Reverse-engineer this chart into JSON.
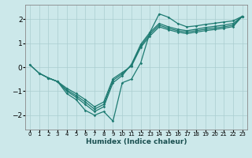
{
  "title": "",
  "xlabel": "Humidex (Indice chaleur)",
  "ylabel": "",
  "xlim": [
    -0.5,
    23.5
  ],
  "ylim": [
    -2.6,
    2.6
  ],
  "xticks": [
    0,
    1,
    2,
    3,
    4,
    5,
    6,
    7,
    8,
    9,
    10,
    11,
    12,
    13,
    14,
    15,
    16,
    17,
    18,
    19,
    20,
    21,
    22,
    23
  ],
  "yticks": [
    -2,
    -1,
    0,
    1,
    2
  ],
  "bg_color": "#cce8ea",
  "line_color": "#1e7b72",
  "grid_color": "#aacdd0",
  "figsize": [
    3.2,
    2.0
  ],
  "dpi": 100,
  "lines": [
    {
      "x": [
        0,
        1,
        2,
        3,
        4,
        5,
        6,
        7,
        8,
        9,
        10,
        11,
        12,
        13,
        14,
        15,
        16,
        17,
        18,
        19,
        20,
        21,
        22,
        23
      ],
      "y": [
        0.1,
        -0.25,
        -0.45,
        -0.6,
        -1.1,
        -1.35,
        -1.8,
        -2.0,
        -1.85,
        -2.25,
        -0.65,
        -0.5,
        0.18,
        1.45,
        2.22,
        2.08,
        1.82,
        1.68,
        1.72,
        1.78,
        1.83,
        1.88,
        1.93,
        2.12
      ]
    },
    {
      "x": [
        0,
        1,
        2,
        3,
        4,
        5,
        6,
        7,
        8,
        9,
        10,
        11,
        12,
        13,
        14,
        15,
        16,
        17,
        18,
        19,
        20,
        21,
        22,
        23
      ],
      "y": [
        0.1,
        -0.25,
        -0.45,
        -0.6,
        -1.0,
        -1.25,
        -1.55,
        -1.85,
        -1.65,
        -0.65,
        -0.35,
        0.12,
        0.95,
        1.45,
        1.82,
        1.68,
        1.58,
        1.52,
        1.58,
        1.65,
        1.7,
        1.75,
        1.82,
        2.12
      ]
    },
    {
      "x": [
        1,
        2,
        3,
        4,
        5,
        6,
        7,
        8,
        9,
        10,
        11,
        12,
        13,
        14,
        15,
        16,
        17,
        18,
        19,
        20,
        21,
        22,
        23
      ],
      "y": [
        -0.25,
        -0.45,
        -0.6,
        -0.95,
        -1.18,
        -1.45,
        -1.75,
        -1.55,
        -0.55,
        -0.28,
        0.08,
        0.88,
        1.38,
        1.75,
        1.62,
        1.52,
        1.46,
        1.52,
        1.58,
        1.63,
        1.68,
        1.75,
        2.12
      ]
    },
    {
      "x": [
        2,
        3,
        4,
        5,
        6,
        7,
        8,
        9,
        10,
        11,
        12,
        13,
        14,
        15,
        16,
        17,
        18,
        19,
        20,
        21,
        22,
        23
      ],
      "y": [
        -0.45,
        -0.6,
        -0.88,
        -1.1,
        -1.35,
        -1.65,
        -1.45,
        -0.48,
        -0.22,
        0.04,
        0.82,
        1.3,
        1.68,
        1.56,
        1.46,
        1.4,
        1.46,
        1.52,
        1.57,
        1.62,
        1.69,
        2.12
      ]
    }
  ]
}
